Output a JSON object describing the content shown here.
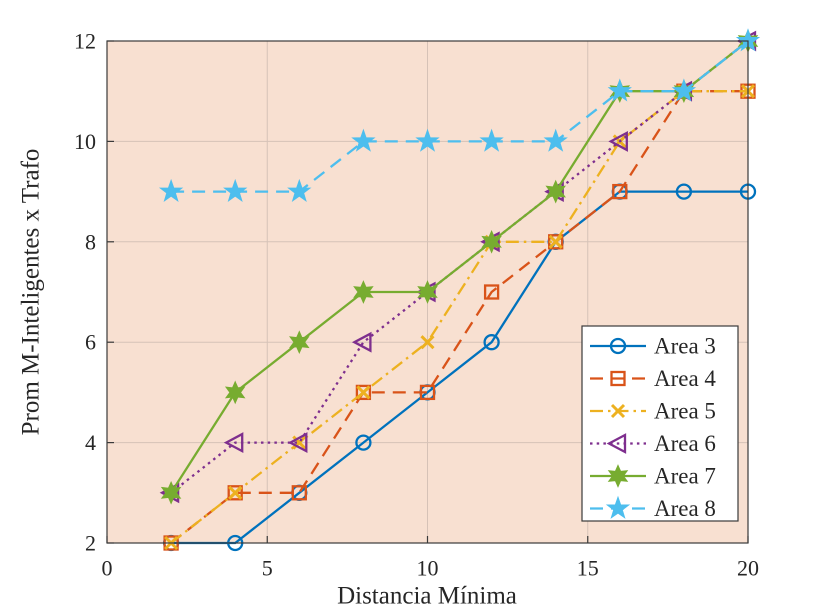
{
  "figure": {
    "background": "#ffffff",
    "plot_background": "#F8E0D1",
    "grid_color": "#D6C2B7",
    "axis_color": "#3a3a3a",
    "text_color": "#262626"
  },
  "chart_data": {
    "type": "line",
    "title": "",
    "xlabel": "Distancia Mínima",
    "ylabel": "Prom M-Inteligentes x Trafo",
    "xlim": [
      0,
      20
    ],
    "ylim": [
      2,
      12
    ],
    "xticks": [
      0,
      5,
      10,
      15,
      20
    ],
    "yticks": [
      2,
      4,
      6,
      8,
      10,
      12
    ],
    "grid": true,
    "legend_position": "lower-right-inside",
    "x": [
      2,
      4,
      6,
      8,
      10,
      12,
      14,
      16,
      18,
      20
    ],
    "series": [
      {
        "name": "Area 3",
        "color": "#0072BD",
        "line_style": "solid",
        "marker": "circle",
        "values": [
          2,
          2,
          3,
          4,
          5,
          6,
          8,
          9,
          9,
          9
        ]
      },
      {
        "name": "Area 4",
        "color": "#D95319",
        "line_style": "dashed",
        "marker": "square",
        "values": [
          2,
          3,
          3,
          5,
          5,
          7,
          8,
          9,
          11,
          11
        ]
      },
      {
        "name": "Area 5",
        "color": "#EDB120",
        "line_style": "dashdot",
        "marker": "x",
        "values": [
          2,
          3,
          4,
          5,
          6,
          8,
          8,
          10,
          11,
          11
        ]
      },
      {
        "name": "Area 6",
        "color": "#7E2F8E",
        "line_style": "dotted",
        "marker": "triangle-left",
        "values": [
          3,
          4,
          4,
          6,
          7,
          8,
          9,
          10,
          11,
          12
        ]
      },
      {
        "name": "Area 7",
        "color": "#77AC30",
        "line_style": "solid",
        "marker": "hexagram",
        "values": [
          3,
          5,
          6,
          7,
          7,
          8,
          9,
          11,
          11,
          12
        ]
      },
      {
        "name": "Area 8",
        "color": "#4DBEEE",
        "line_style": "dashed",
        "marker": "pentagram",
        "values": [
          9,
          9,
          9,
          10,
          10,
          10,
          10,
          11,
          11,
          12
        ]
      }
    ]
  }
}
